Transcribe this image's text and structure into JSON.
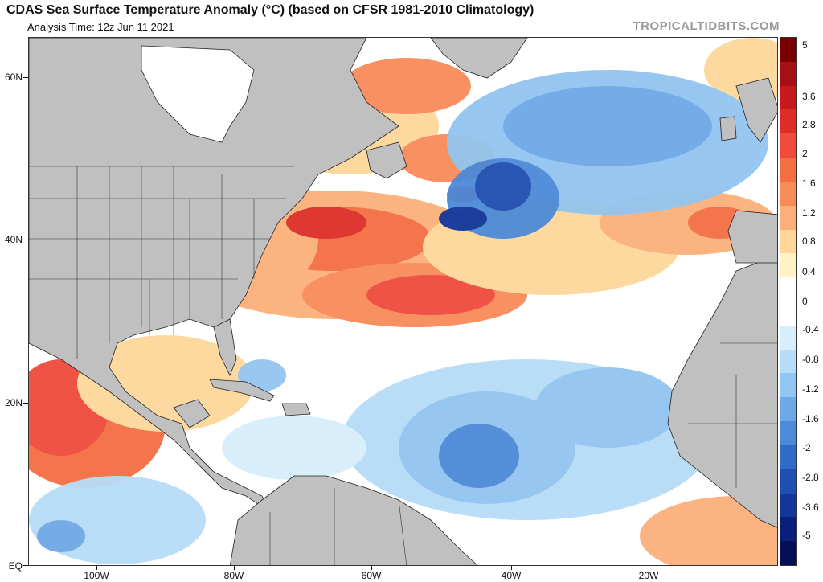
{
  "header": {
    "title": "CDAS Sea Surface Temperature Anomaly (°C) (based on CFSR 1981-2010 Climatology)",
    "subtitle": "Analysis Time: 12z Jun 11 2021",
    "brand": "TROPICALTIDBITS.COM"
  },
  "axes": {
    "lat_labels": [
      "60N",
      "40N",
      "20N",
      "EQ"
    ],
    "lon_labels": [
      "100W",
      "80W",
      "60W",
      "40W",
      "20W"
    ]
  },
  "colorbar": {
    "labels": [
      "5",
      "3.6",
      "2.8",
      "2",
      "1.6",
      "1.2",
      "0.8",
      "0.4",
      "0",
      "-0.4",
      "-0.8",
      "-1.2",
      "-1.6",
      "-2",
      "-2.8",
      "-3.6",
      "-5"
    ],
    "colors": [
      "#7a0000",
      "#a50f15",
      "#c8191e",
      "#de2d26",
      "#ef4a3c",
      "#f46d43",
      "#f88b5a",
      "#fbb07a",
      "#fdd79a",
      "#fff3c4",
      "#ffffff",
      "#ffffff",
      "#d8eefb",
      "#b6dcf7",
      "#92c5f0",
      "#6ea8e6",
      "#4d8ad8",
      "#2f6cc8",
      "#1f4fb3",
      "#12369a",
      "#0a1f7a",
      "#050f55"
    ]
  },
  "colors": {
    "land": "#c0c0c0",
    "ice": "#ffffff",
    "ocean_neutral": "#ffffff"
  }
}
